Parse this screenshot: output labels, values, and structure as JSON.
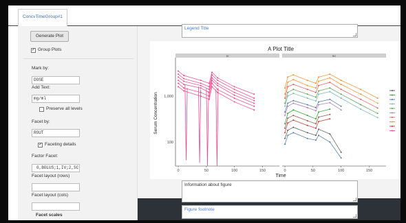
{
  "tab": {
    "label": "ConcvTimeGroup#1"
  },
  "sidebar": {
    "generate_button": "Generate Plot",
    "group_plots": {
      "label": "Group Plots",
      "checked": true
    },
    "mark_by": {
      "label": "Mark by:",
      "value": "DOSE"
    },
    "add_text": {
      "label": "Add Text:",
      "value": "mg/ml"
    },
    "preserve_levels": {
      "label": "Preserve all levels",
      "checked": false
    },
    "facet_by": {
      "label": "Facet by:",
      "value": "ROUT"
    },
    "faceting_details": {
      "label": "Faceting details",
      "checked": true
    },
    "factor_facet": {
      "label": "Factor Facet:",
      "value": "0,BOLUS;1,IV;2,SC"
    },
    "facet_rows": {
      "label": "Facet layout (rows)",
      "value": ""
    },
    "facet_cols": {
      "label": "Facet layout (cols)",
      "value": ""
    },
    "facet_scales": {
      "label": "Facet scales"
    }
  },
  "main": {
    "legend_title_placeholder": "Legend Title",
    "info_placeholder": "Information about figure",
    "footnote_placeholder": "Figure footnote"
  },
  "chart_data": {
    "type": "line",
    "title": "A Plot Title",
    "xlabel": "Time",
    "ylabel": "Serum Concentration",
    "y_scale": "log",
    "ylim": [
      30,
      6000
    ],
    "y_ticks": [
      100,
      1000
    ],
    "y_tick_labels": [
      "100",
      "1,000"
    ],
    "facets": [
      {
        "name": "IV",
        "xlim": [
          -5,
          180
        ],
        "x_ticks": [
          0,
          50,
          100,
          150
        ],
        "x_tick_labels": [
          "0",
          "50",
          "100",
          "150"
        ],
        "color": "#e8488a",
        "series": [
          {
            "x": [
              0,
              10,
              40,
              55,
              60,
              70,
              100,
              135
            ],
            "y": [
              3500,
              2800,
              2200,
              1900,
              3300,
              2500,
              1600,
              1100
            ]
          },
          {
            "x": [
              0,
              10,
              40,
              55,
              60,
              70,
              100,
              135
            ],
            "y": [
              3000,
              2400,
              1900,
              1600,
              2900,
              2200,
              1400,
              900
            ]
          },
          {
            "x": [
              0,
              10,
              40,
              55,
              60,
              70,
              100,
              135
            ],
            "y": [
              2600,
              2100,
              1700,
              1400,
              2500,
              1900,
              1200,
              800
            ]
          },
          {
            "x": [
              0,
              10,
              40,
              55,
              60,
              70,
              100,
              135
            ],
            "y": [
              2200,
              1800,
              1500,
              1200,
              2200,
              1700,
              1050,
              700
            ]
          },
          {
            "x": [
              0,
              10,
              40,
              55,
              60,
              70,
              100,
              135
            ],
            "y": [
              1900,
              1500,
              1200,
              1000,
              1900,
              1400,
              900,
              600
            ]
          },
          {
            "x": [
              0,
              10,
              40,
              55,
              60,
              70,
              100,
              135
            ],
            "y": [
              1600,
              1300,
              1000,
              850,
              1600,
              1200,
              750,
              500
            ]
          }
        ],
        "drops": [
          {
            "x": [
              12,
              14,
              16
            ],
            "y": [
              1800,
              40,
              1500
            ]
          },
          {
            "x": [
              36,
              38,
              40
            ],
            "y": [
              1600,
              35,
              1400
            ]
          },
          {
            "x": [
              50,
              52,
              54
            ],
            "y": [
              1500,
              30,
              1300
            ]
          },
          {
            "x": [
              67,
              69,
              71
            ],
            "y": [
              1400,
              30,
              1500
            ]
          }
        ]
      },
      {
        "name": "SC",
        "xlim": [
          -5,
          180
        ],
        "x_ticks": [
          0,
          50,
          100,
          150
        ],
        "x_tick_labels": [
          "0",
          "50",
          "100",
          "150"
        ],
        "series": [
          {
            "color": "#f28e2b",
            "x": [
              0,
              5,
              15,
              40,
              55,
              60,
              80,
              100,
              135,
              165
            ],
            "y": [
              1500,
              2600,
              2900,
              2200,
              1900,
              2600,
              3000,
              2200,
              1400,
              900
            ]
          },
          {
            "color": "#f28e2b",
            "x": [
              0,
              5,
              15,
              40,
              55,
              60,
              80,
              100,
              135,
              165
            ],
            "y": [
              1100,
              2000,
              2300,
              1700,
              1500,
              2100,
              2500,
              1800,
              1100,
              700
            ]
          },
          {
            "color": "#e15759",
            "x": [
              0,
              5,
              15,
              40,
              55,
              60,
              80,
              100,
              135,
              165
            ],
            "y": [
              900,
              1600,
              1800,
              1400,
              1200,
              1700,
              2000,
              1400,
              850,
              550
            ]
          },
          {
            "color": "#59a14f",
            "x": [
              0,
              5,
              15,
              40,
              55,
              60,
              80,
              100,
              135,
              165
            ],
            "y": [
              700,
              1200,
              1400,
              1100,
              950,
              1300,
              1500,
              1100,
              650,
              420
            ]
          },
          {
            "color": "#76b7b2",
            "x": [
              0,
              5,
              15,
              40,
              55,
              60,
              80,
              100,
              135,
              165
            ],
            "y": [
              600,
              1000,
              1150,
              900,
              780,
              1100,
              1250,
              900,
              520,
              340
            ]
          },
          {
            "color": "#4e79a7",
            "x": [
              0,
              5,
              15,
              40,
              55,
              60,
              80,
              100
            ],
            "y": [
              450,
              700,
              800,
              650,
              560,
              750,
              850,
              600
            ]
          },
          {
            "color": "#b07aa1",
            "x": [
              0,
              5,
              15,
              40,
              55,
              60,
              80,
              100
            ],
            "y": [
              380,
              600,
              700,
              560,
              480,
              650,
              720,
              500
            ]
          },
          {
            "color": "#2ca02c",
            "x": [
              0,
              5,
              15,
              40,
              55,
              60,
              80
            ],
            "y": [
              250,
              420,
              500,
              380,
              320,
              450,
              520
            ]
          },
          {
            "color": "#8c564b",
            "x": [
              0,
              5,
              15,
              40,
              55,
              60,
              80
            ],
            "y": [
              200,
              330,
              380,
              290,
              250,
              350,
              400
            ]
          },
          {
            "color": "#c0392b",
            "x": [
              0,
              5,
              15,
              40,
              55,
              60,
              80
            ],
            "y": [
              160,
              260,
              300,
              230,
              200,
              280,
              320
            ]
          },
          {
            "color": "#555555",
            "x": [
              0,
              5,
              15,
              40,
              55,
              60,
              80,
              100
            ],
            "y": [
              120,
              180,
              210,
              160,
              140,
              190,
              150,
              60
            ]
          },
          {
            "color": "#4e79a7",
            "x": [
              0,
              5,
              15,
              40,
              55,
              60,
              80,
              100
            ],
            "y": [
              90,
              140,
              160,
              120,
              110,
              140,
              100,
              45
            ]
          }
        ]
      }
    ],
    "legend_colors": [
      "#555555",
      "#2ca02c",
      "#4e79a7",
      "#76b7b2",
      "#59a14f",
      "#b07aa1",
      "#e15759",
      "#f28e2b",
      "#c0392b",
      "#e8488a"
    ]
  }
}
